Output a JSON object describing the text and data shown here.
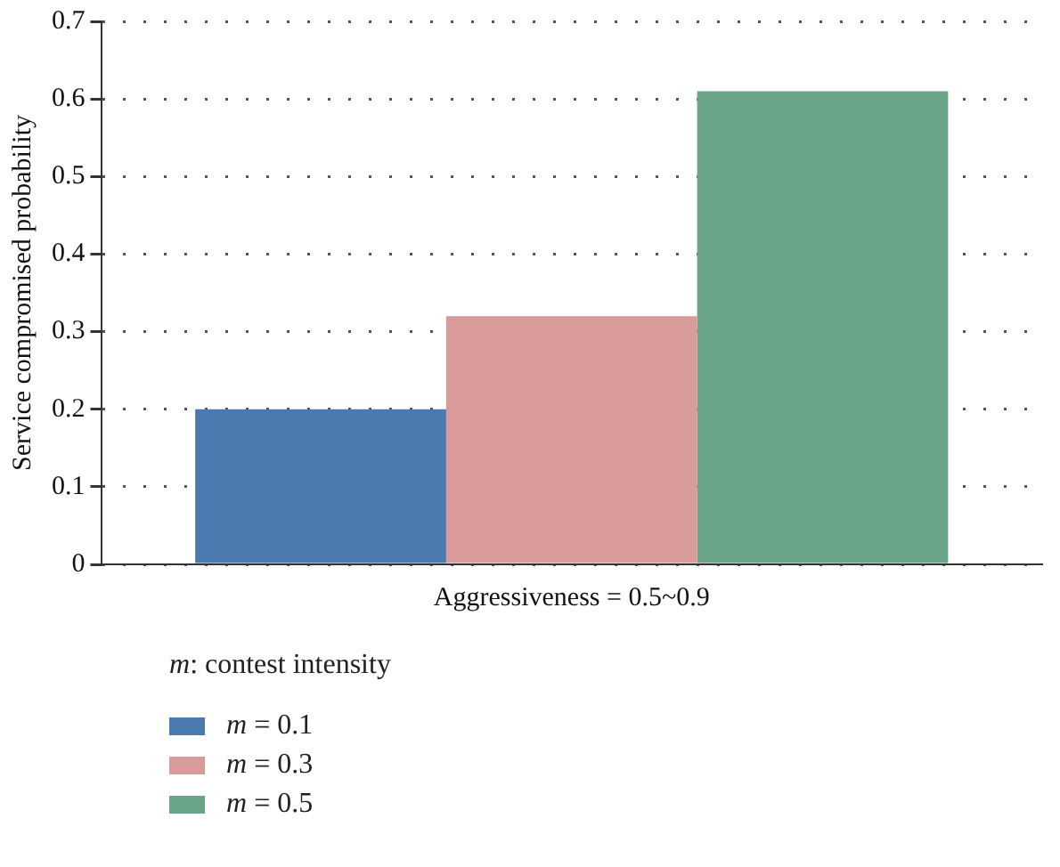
{
  "chart_data": {
    "type": "bar",
    "categories": [
      "Aggressiveness = 0.5~0.9"
    ],
    "ylabel": "Service compromised probability",
    "legend_title": "m: contest intensity",
    "series": [
      {
        "name": "m = 0.1",
        "color": "#4a7ab0",
        "values": [
          0.2
        ]
      },
      {
        "name": "m = 0.3",
        "color": "#d99a9a",
        "values": [
          0.32
        ]
      },
      {
        "name": "m = 0.5",
        "color": "#6aa588",
        "values": [
          0.61
        ]
      }
    ],
    "ylim": [
      0,
      0.7
    ],
    "yticks": [
      0,
      0.1,
      0.2,
      0.3,
      0.4,
      0.5,
      0.6,
      0.7
    ],
    "grid": "y",
    "legend": "bottom left"
  }
}
